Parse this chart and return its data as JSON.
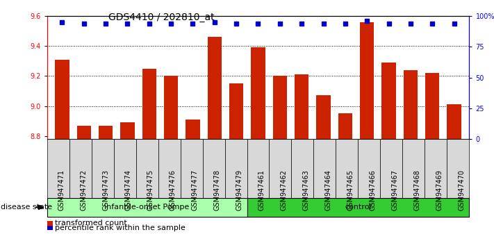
{
  "title": "GDS4410 / 202810_at",
  "samples": [
    "GSM947471",
    "GSM947472",
    "GSM947473",
    "GSM947474",
    "GSM947475",
    "GSM947476",
    "GSM947477",
    "GSM947478",
    "GSM947479",
    "GSM947461",
    "GSM947462",
    "GSM947463",
    "GSM947464",
    "GSM947465",
    "GSM947466",
    "GSM947467",
    "GSM947468",
    "GSM947469",
    "GSM947470"
  ],
  "red_values": [
    9.31,
    8.87,
    8.87,
    8.89,
    9.25,
    9.2,
    8.91,
    9.46,
    9.15,
    9.39,
    9.2,
    9.21,
    9.07,
    8.95,
    9.56,
    9.29,
    9.24,
    9.22,
    9.01
  ],
  "blue_values": [
    95,
    94,
    94,
    94,
    94,
    94,
    94,
    95,
    94,
    94,
    94,
    94,
    94,
    94,
    96,
    94,
    94,
    94,
    94
  ],
  "ylim_left": [
    8.78,
    9.6
  ],
  "ylim_right": [
    0,
    100
  ],
  "yticks_left": [
    8.8,
    9.0,
    9.2,
    9.4,
    9.6
  ],
  "yticks_right": [
    0,
    25,
    50,
    75,
    100
  ],
  "ytick_labels_right": [
    "0",
    "25",
    "50",
    "75",
    "100%"
  ],
  "group1_label": "infantile-onset Pompe",
  "group2_label": "control",
  "n_group1": 9,
  "n_group2": 10,
  "legend1_label": "transformed count",
  "legend2_label": "percentile rank within the sample",
  "disease_state_label": "disease state",
  "bar_color": "#cc2200",
  "dot_color": "#0000cc",
  "group1_bg": "#aaffaa",
  "group2_bg": "#33cc33",
  "axis_bg": "#d8d8d8",
  "title_fontsize": 10,
  "tick_fontsize": 7,
  "bar_width": 0.65
}
